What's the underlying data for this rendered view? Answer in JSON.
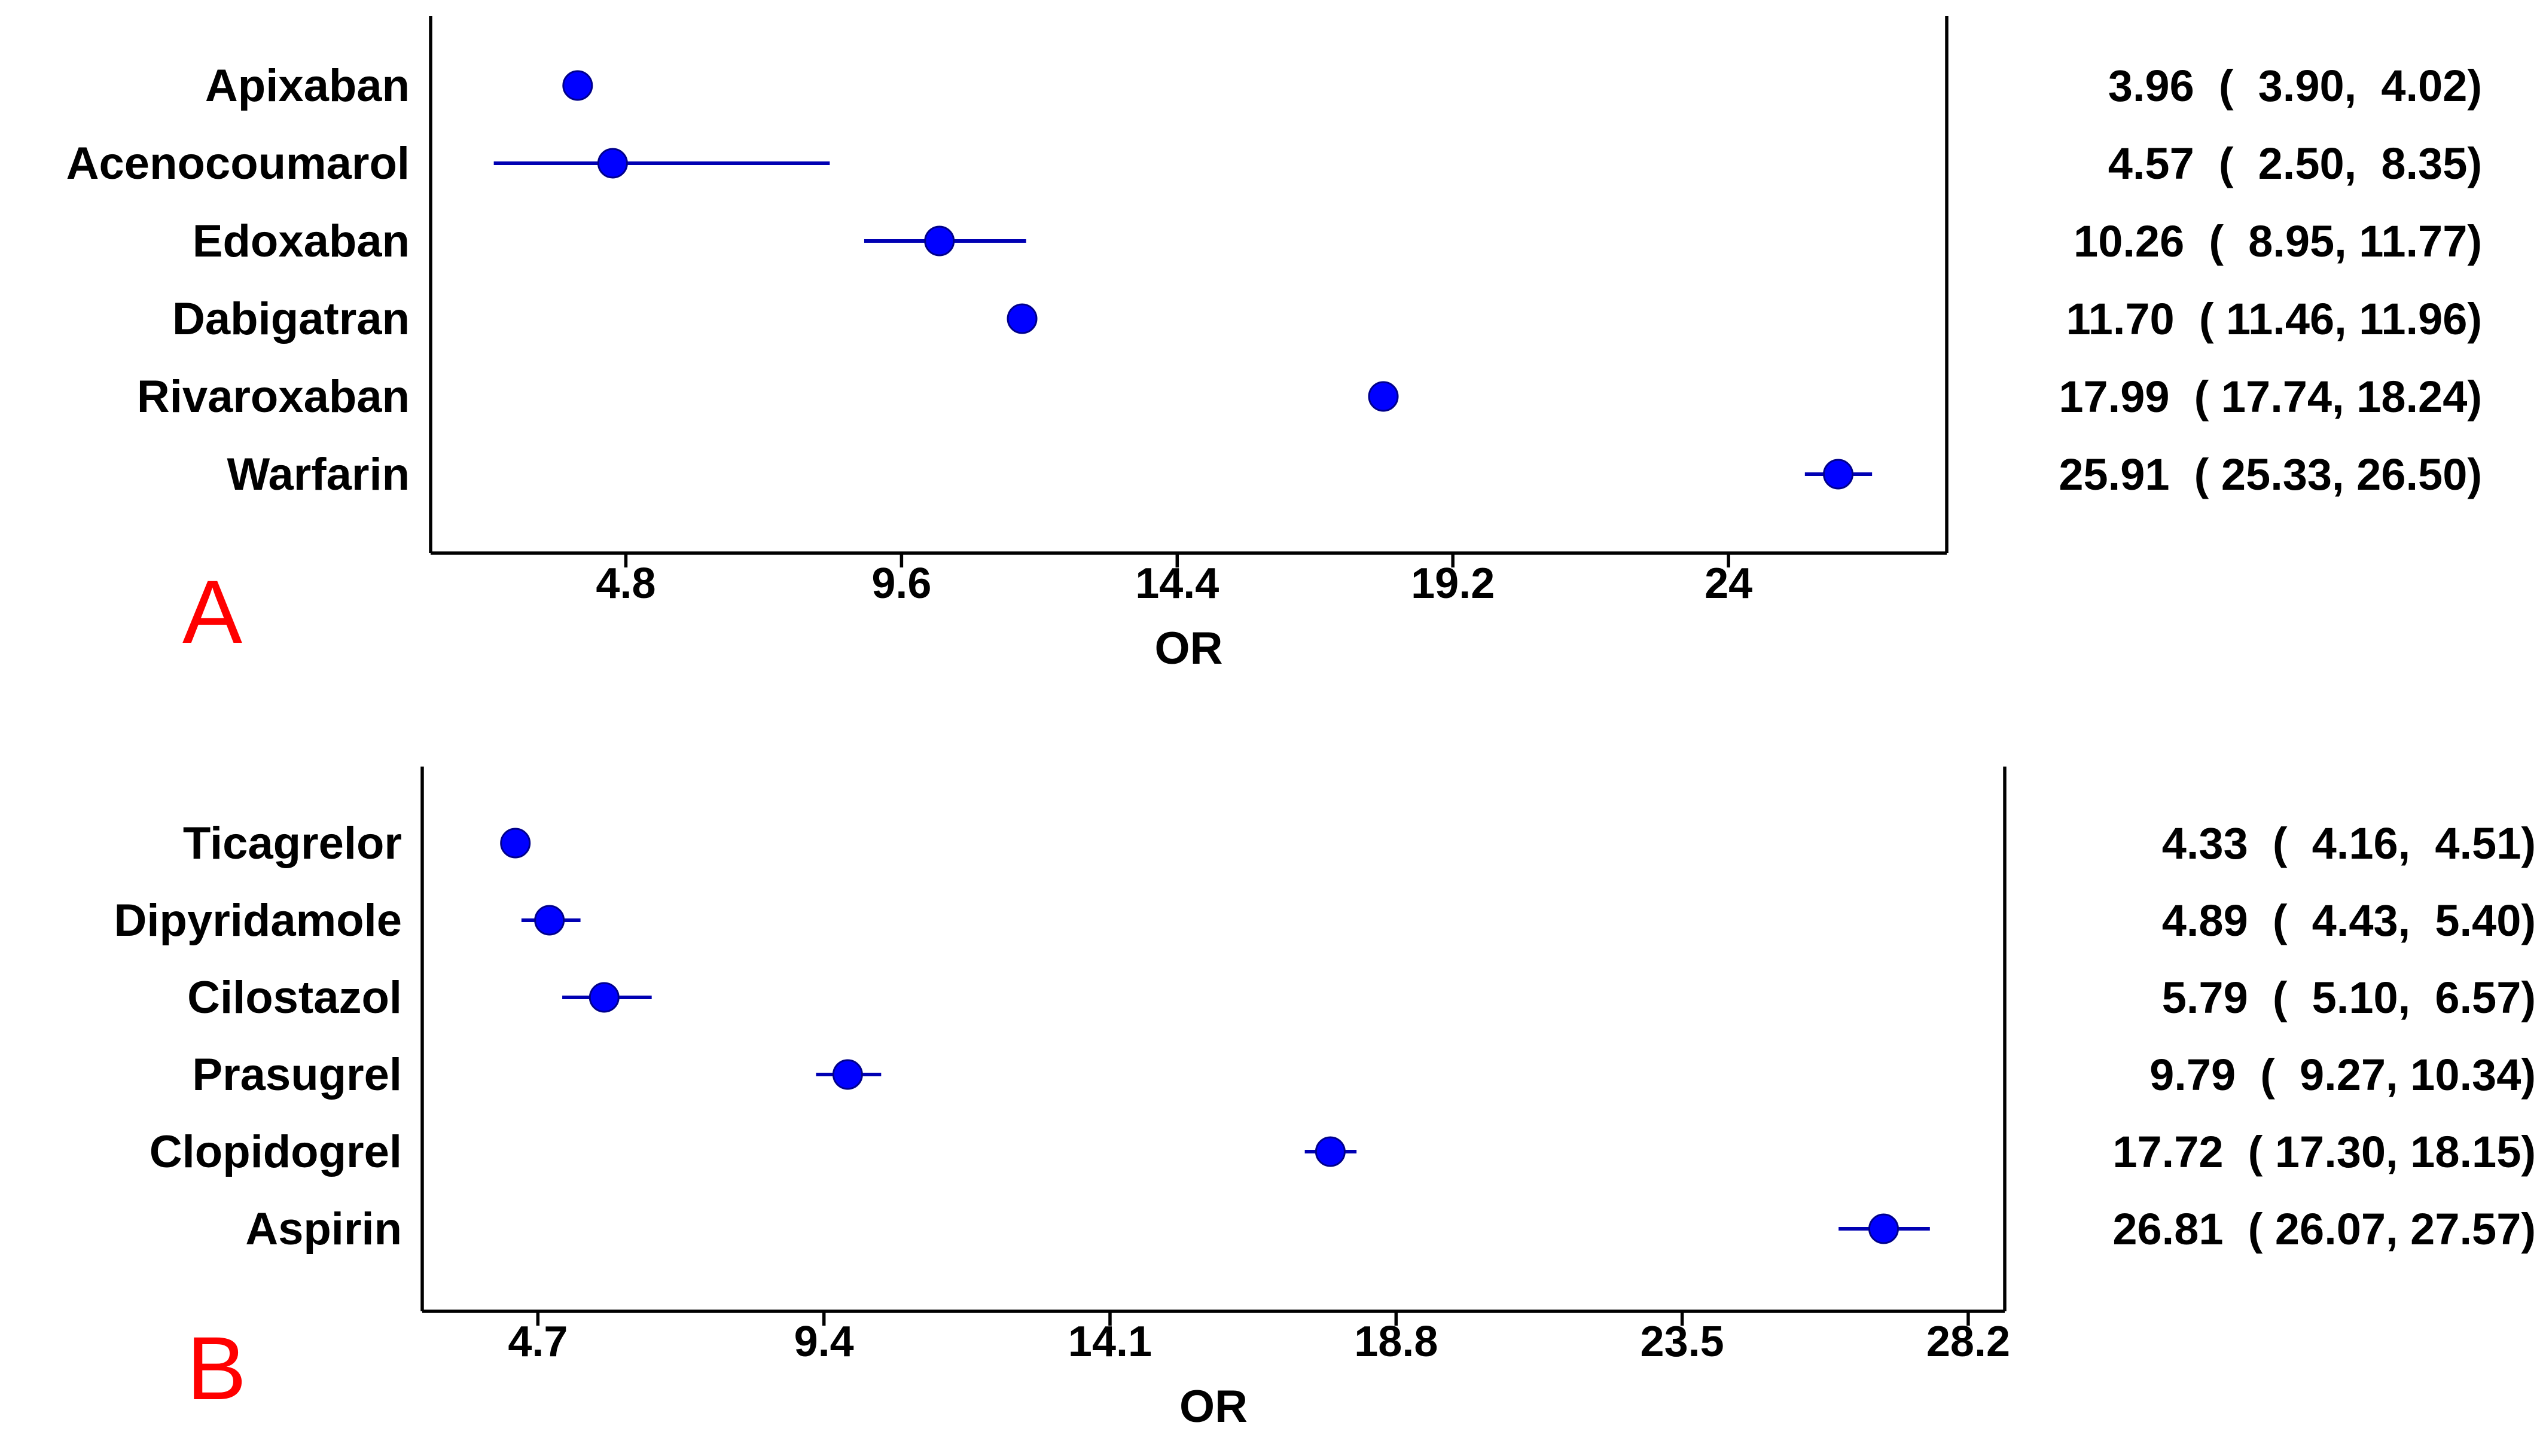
{
  "colors": {
    "marker": "#0000ff",
    "marker_edge": "#00008b",
    "ci_line": "#0000b3",
    "axis": "#000000",
    "text": "#000000",
    "panel_letter": "#ff0000"
  },
  "chart_data": [
    {
      "type": "forest",
      "panel_label": "A",
      "xlabel": "OR",
      "xlim": [
        1.4,
        27.8
      ],
      "xticks": [
        4.8,
        9.6,
        14.4,
        19.2,
        24
      ],
      "xtick_labels": [
        "4.8",
        "9.6",
        "14.4",
        "19.2",
        "24"
      ],
      "rows": [
        {
          "label": "Apixaban",
          "or": 3.96,
          "lo": 3.9,
          "hi": 4.02,
          "text": "3.96  (  3.90,  4.02)"
        },
        {
          "label": "Acenocoumarol",
          "or": 4.57,
          "lo": 2.5,
          "hi": 8.35,
          "text": "4.57  (  2.50,  8.35)"
        },
        {
          "label": "Edoxaban",
          "or": 10.26,
          "lo": 8.95,
          "hi": 11.77,
          "text": "10.26  (  8.95, 11.77)"
        },
        {
          "label": "Dabigatran",
          "or": 11.7,
          "lo": 11.46,
          "hi": 11.96,
          "text": "11.70  ( 11.46, 11.96)"
        },
        {
          "label": "Rivaroxaban",
          "or": 17.99,
          "lo": 17.74,
          "hi": 18.24,
          "text": "17.99  ( 17.74, 18.24)"
        },
        {
          "label": "Warfarin",
          "or": 25.91,
          "lo": 25.33,
          "hi": 26.5,
          "text": "25.91  ( 25.33, 26.50)"
        }
      ]
    },
    {
      "type": "forest",
      "panel_label": "B",
      "xlabel": "OR",
      "xlim": [
        2.8,
        28.8
      ],
      "xticks": [
        4.7,
        9.4,
        14.1,
        18.8,
        23.5,
        28.2
      ],
      "xtick_labels": [
        "4.7",
        "9.4",
        "14.1",
        "18.8",
        "23.5",
        "28.2"
      ],
      "rows": [
        {
          "label": "Ticagrelor",
          "or": 4.33,
          "lo": 4.16,
          "hi": 4.51,
          "text": "4.33  (  4.16,  4.51)"
        },
        {
          "label": "Dipyridamole",
          "or": 4.89,
          "lo": 4.43,
          "hi": 5.4,
          "text": "4.89  (  4.43,  5.40)"
        },
        {
          "label": "Cilostazol",
          "or": 5.79,
          "lo": 5.1,
          "hi": 6.57,
          "text": "5.79  (  5.10,  6.57)"
        },
        {
          "label": "Prasugrel",
          "or": 9.79,
          "lo": 9.27,
          "hi": 10.34,
          "text": "9.79  (  9.27, 10.34)"
        },
        {
          "label": "Clopidogrel",
          "or": 17.72,
          "lo": 17.3,
          "hi": 18.15,
          "text": "17.72  ( 17.30, 18.15)"
        },
        {
          "label": "Aspirin",
          "or": 26.81,
          "lo": 26.07,
          "hi": 27.57,
          "text": "26.81  ( 26.07, 27.57)"
        }
      ]
    }
  ]
}
